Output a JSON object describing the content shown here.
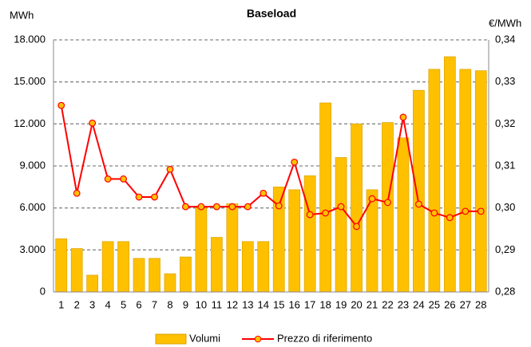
{
  "chart_data": {
    "type": "bar-line",
    "title": "Baseload",
    "y_label": "MWh",
    "y2_label": "€/MWh",
    "categories": [
      "1",
      "2",
      "3",
      "4",
      "5",
      "6",
      "7",
      "8",
      "9",
      "10",
      "11",
      "12",
      "13",
      "14",
      "15",
      "16",
      "17",
      "18",
      "19",
      "20",
      "21",
      "22",
      "23",
      "24",
      "25",
      "26",
      "27",
      "28"
    ],
    "series": [
      {
        "name": "Volumi",
        "type": "bar",
        "color": "#ffc000",
        "values": [
          3800,
          3100,
          1200,
          3600,
          3600,
          2400,
          2400,
          1300,
          2500,
          6000,
          3900,
          6300,
          3600,
          3600,
          7500,
          7300,
          8300,
          13500,
          9600,
          12000,
          7300,
          12100,
          11000,
          14400,
          15900,
          16800,
          15900,
          15800
        ]
      },
      {
        "name": "Prezzo di riferimento",
        "type": "line",
        "axis": "y2",
        "color": "#ff0000",
        "values": [
          0.3244,
          0.3035,
          0.3202,
          0.3069,
          0.3069,
          0.3026,
          0.3026,
          0.3092,
          0.3003,
          0.3003,
          0.3003,
          0.3003,
          0.3003,
          0.3035,
          0.3005,
          0.3109,
          0.2984,
          0.2988,
          0.3003,
          0.2956,
          0.3022,
          0.3013,
          0.3216,
          0.3009,
          0.2988,
          0.2977,
          0.2992,
          0.2992
        ]
      }
    ],
    "ylim": [
      0,
      18000
    ],
    "yticks": [
      0,
      {
        "value": 3000,
        "label": "3.000"
      },
      {
        "value": 6000,
        "label": "6.000"
      },
      {
        "value": 9000,
        "label": "9.000"
      },
      {
        "value": 12000,
        "label": "12.000"
      },
      {
        "value": 15000,
        "label": "15.000"
      },
      {
        "value": 18000,
        "label": "18.000"
      }
    ],
    "y2lim": [
      0.28,
      0.34
    ],
    "y2ticks": [
      {
        "value": 0.28,
        "label": "0,28"
      },
      {
        "value": 0.29,
        "label": "0,29"
      },
      {
        "value": 0.3,
        "label": "0,30"
      },
      {
        "value": 0.31,
        "label": "0,31"
      },
      {
        "value": 0.32,
        "label": "0,32"
      },
      {
        "value": 0.33,
        "label": "0,33"
      },
      {
        "value": 0.34,
        "label": "0,34"
      }
    ],
    "grid": true,
    "legend": "bottom"
  }
}
